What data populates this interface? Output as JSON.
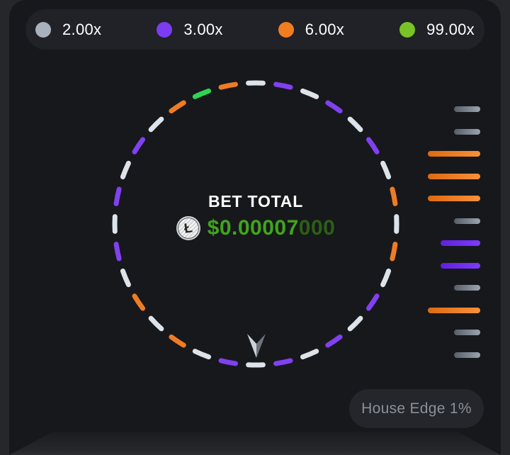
{
  "legend": {
    "items": [
      {
        "label": "2.00x",
        "color": "#a9b1bc"
      },
      {
        "label": "3.00x",
        "color": "#7c3cf3"
      },
      {
        "label": "6.00x",
        "color": "#f07d1f"
      },
      {
        "label": "99.00x",
        "color": "#79c327"
      }
    ]
  },
  "wheel": {
    "bet_total_label": "BET TOTAL",
    "currency_symbol": "Ł",
    "bet_amount_primary": "$0.00007",
    "bet_amount_trailing": "000",
    "amount_color_primary": "#3fa51d",
    "amount_color_trailing": "#2b5f17",
    "segments": [
      "white",
      "orange",
      "white",
      "purple",
      "white",
      "purple",
      "white",
      "purple",
      "white",
      "orange",
      "green",
      "orange",
      "white",
      "purple",
      "white",
      "purple",
      "white",
      "purple",
      "white",
      "orange",
      "white",
      "orange",
      "white",
      "purple",
      "white",
      "purple",
      "white",
      "purple",
      "white",
      "purple",
      "white",
      "orange"
    ],
    "segment_colors": {
      "white": "#dce3eb",
      "purple": "#8041f0",
      "orange": "#ee7c25",
      "green": "#2fd455"
    }
  },
  "history": {
    "items": [
      "gray",
      "gray",
      "orange",
      "orange",
      "orange",
      "gray",
      "purple",
      "purple",
      "gray",
      "orange",
      "gray",
      "gray"
    ]
  },
  "footer": {
    "house_edge_label": "House Edge 1%"
  }
}
